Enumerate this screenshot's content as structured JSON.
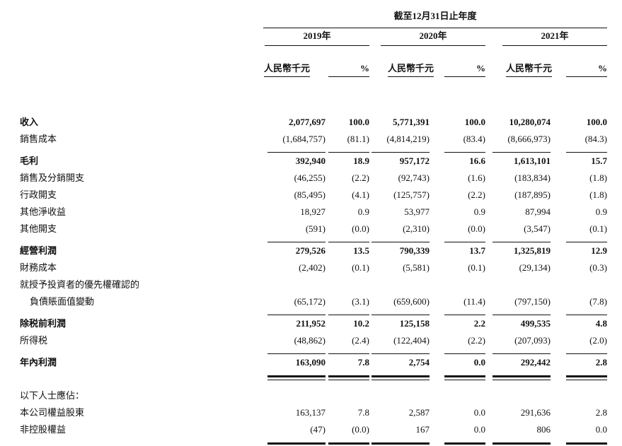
{
  "document": {
    "period_header": "截至12月31日止年度",
    "years": [
      {
        "label": "2019年"
      },
      {
        "label": "2020年"
      },
      {
        "label": "2021年"
      }
    ],
    "unit_header": "人民幣千元",
    "percent_header": "%",
    "rows": [
      {
        "label": "收入",
        "bold": true,
        "indent": false,
        "spacer_before": false,
        "rule_below": "none",
        "values": [
          "2,077,697",
          "100.0",
          "5,771,391",
          "100.0",
          "10,280,074",
          "100.0"
        ]
      },
      {
        "label": "銷售成本",
        "bold": false,
        "indent": false,
        "spacer_before": false,
        "rule_below": "single",
        "values": [
          "(1,684,757)",
          "(81.1)",
          "(4,814,219)",
          "(83.4)",
          "(8,666,973)",
          "(84.3)"
        ]
      },
      {
        "label": "毛利",
        "bold": true,
        "indent": false,
        "spacer_before": false,
        "rule_below": "none",
        "values": [
          "392,940",
          "18.9",
          "957,172",
          "16.6",
          "1,613,101",
          "15.7"
        ]
      },
      {
        "label": "銷售及分銷開支",
        "bold": false,
        "indent": false,
        "spacer_before": false,
        "rule_below": "none",
        "values": [
          "(46,255)",
          "(2.2)",
          "(92,743)",
          "(1.6)",
          "(183,834)",
          "(1.8)"
        ]
      },
      {
        "label": "行政開支",
        "bold": false,
        "indent": false,
        "spacer_before": false,
        "rule_below": "none",
        "values": [
          "(85,495)",
          "(4.1)",
          "(125,757)",
          "(2.2)",
          "(187,895)",
          "(1.8)"
        ]
      },
      {
        "label": "其他淨收益",
        "bold": false,
        "indent": false,
        "spacer_before": false,
        "rule_below": "none",
        "values": [
          "18,927",
          "0.9",
          "53,977",
          "0.9",
          "87,994",
          "0.9"
        ]
      },
      {
        "label": "其他開支",
        "bold": false,
        "indent": false,
        "spacer_before": false,
        "rule_below": "single",
        "values": [
          "(591)",
          "(0.0)",
          "(2,310)",
          "(0.0)",
          "(3,547)",
          "(0.1)"
        ]
      },
      {
        "label": "經營利潤",
        "bold": true,
        "indent": false,
        "spacer_before": false,
        "rule_below": "none",
        "values": [
          "279,526",
          "13.5",
          "790,339",
          "13.7",
          "1,325,819",
          "12.9"
        ]
      },
      {
        "label": "財務成本",
        "bold": false,
        "indent": false,
        "spacer_before": false,
        "rule_below": "none",
        "values": [
          "(2,402)",
          "(0.1)",
          "(5,581)",
          "(0.1)",
          "(29,134)",
          "(0.3)"
        ]
      },
      {
        "label": "就授予投資者的優先權確認的",
        "bold": false,
        "indent": false,
        "spacer_before": false,
        "rule_below": "none",
        "values": [
          "",
          "",
          "",
          "",
          "",
          ""
        ]
      },
      {
        "label": "負債賬面值變動",
        "bold": false,
        "indent": true,
        "spacer_before": false,
        "rule_below": "single",
        "values": [
          "(65,172)",
          "(3.1)",
          "(659,600)",
          "(11.4)",
          "(797,150)",
          "(7.8)"
        ]
      },
      {
        "label": "除税前利潤",
        "bold": true,
        "indent": false,
        "spacer_before": false,
        "rule_below": "none",
        "values": [
          "211,952",
          "10.2",
          "125,158",
          "2.2",
          "499,535",
          "4.8"
        ]
      },
      {
        "label": "所得税",
        "bold": false,
        "indent": false,
        "spacer_before": false,
        "rule_below": "single",
        "values": [
          "(48,862)",
          "(2.4)",
          "(122,404)",
          "(2.2)",
          "(207,093)",
          "(2.0)"
        ]
      },
      {
        "label": "年內利潤",
        "bold": true,
        "indent": false,
        "spacer_before": false,
        "rule_below": "double",
        "values": [
          "163,090",
          "7.8",
          "2,754",
          "0.0",
          "292,442",
          "2.8"
        ]
      },
      {
        "label": "以下人士應佔：",
        "bold": false,
        "indent": false,
        "spacer_before": true,
        "rule_below": "none",
        "values": [
          "",
          "",
          "",
          "",
          "",
          ""
        ]
      },
      {
        "label": "本公司權益股東",
        "bold": false,
        "indent": false,
        "spacer_before": false,
        "rule_below": "none",
        "values": [
          "163,137",
          "7.8",
          "2,587",
          "0.0",
          "291,636",
          "2.8"
        ]
      },
      {
        "label": "非控股權益",
        "bold": false,
        "indent": false,
        "spacer_before": false,
        "rule_below": "double",
        "values": [
          "(47)",
          "(0.0)",
          "167",
          "0.0",
          "806",
          "0.0"
        ]
      }
    ]
  }
}
